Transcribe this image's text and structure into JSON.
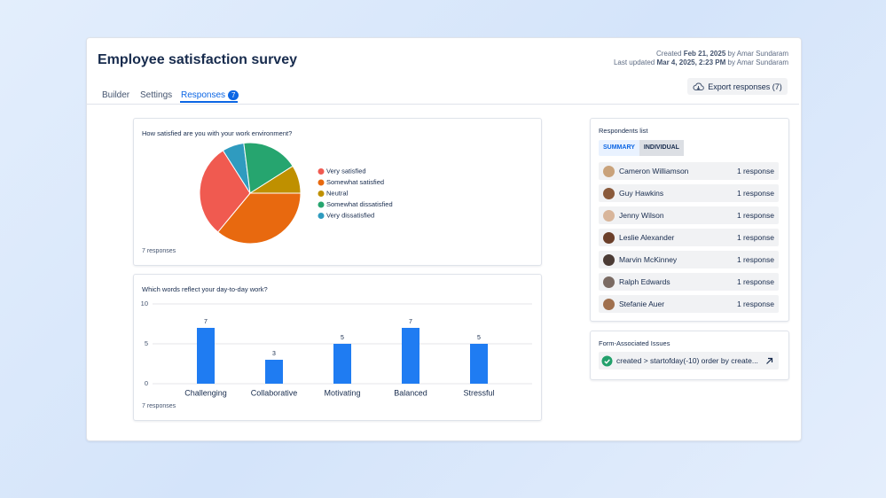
{
  "header": {
    "title": "Employee satisfaction survey",
    "created_label": "Created",
    "created_date": "Feb 21, 2025",
    "created_by": "by Amar Sundaram",
    "updated_label": "Last updated",
    "updated_date": "Mar 4, 2025, 2:23 PM",
    "updated_by": "by Amar Sundaram",
    "export_button": "Export responses (7)"
  },
  "tabs": [
    {
      "label": "Builder"
    },
    {
      "label": "Settings"
    },
    {
      "label": "Responses",
      "badge": 7,
      "active": true
    }
  ],
  "chart_data": [
    {
      "type": "pie",
      "title": "How satisfied are you with your work environment?",
      "footnote": "7 responses",
      "categories": [
        "Very satisfied",
        "Somewhat satisfied",
        "Neutral",
        "Somewhat dissatisfied",
        "Very dissatisfied"
      ],
      "values": [
        30,
        36,
        9,
        18,
        7
      ],
      "colors": [
        "#f05a50",
        "#e8690f",
        "#bf9000",
        "#26a56f",
        "#2f9bbf"
      ],
      "legend": "right"
    },
    {
      "type": "bar",
      "title": "Which words reflect your day-to-day work?",
      "footnote": "7 responses",
      "categories": [
        "Challenging",
        "Collaborative",
        "Motivating",
        "Balanced",
        "Stressful"
      ],
      "values": [
        7,
        3,
        5,
        7,
        5
      ],
      "color": "#1f7cf2",
      "ylim": [
        0,
        10
      ],
      "yticks": [
        0,
        5,
        10
      ],
      "grid": true
    }
  ],
  "respondents": {
    "title": "Respondents list",
    "toggles": [
      "SUMMARY",
      "INDIVIDUAL"
    ],
    "rows": [
      {
        "name": "Cameron Williamson",
        "count": "1 response"
      },
      {
        "name": "Guy Hawkins",
        "count": "1 response"
      },
      {
        "name": "Jenny Wilson",
        "count": "1 response"
      },
      {
        "name": "Leslie Alexander",
        "count": "1 response"
      },
      {
        "name": "Marvin McKinney",
        "count": "1 response"
      },
      {
        "name": "Ralph Edwards",
        "count": "1 response"
      },
      {
        "name": "Stefanie Auer",
        "count": "1 response"
      }
    ]
  },
  "issues": {
    "title": "Form-Associated Issues",
    "query": "created > startofday(-10) order by create..."
  }
}
